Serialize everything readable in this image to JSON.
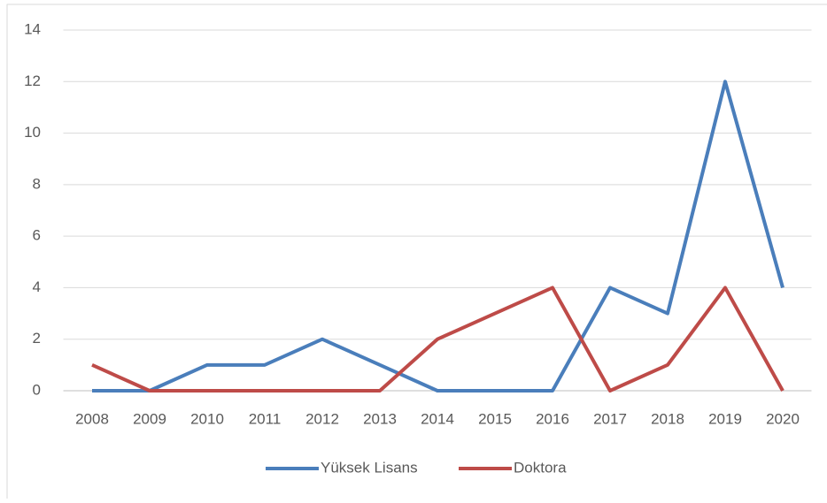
{
  "chart_data": {
    "type": "line",
    "categories": [
      "2008",
      "2009",
      "2010",
      "2011",
      "2012",
      "2013",
      "2014",
      "2015",
      "2016",
      "2017",
      "2018",
      "2019",
      "2020"
    ],
    "series": [
      {
        "name": "Yüksek Lisans",
        "color": "#4a7ebb",
        "values": [
          0,
          0,
          1,
          1,
          2,
          1,
          0,
          0,
          0,
          4,
          3,
          12,
          4
        ]
      },
      {
        "name": "Doktora",
        "color": "#be4b48",
        "values": [
          1,
          0,
          0,
          0,
          0,
          0,
          2,
          3,
          4,
          0,
          1,
          4,
          0
        ]
      }
    ],
    "ylim": [
      0,
      14
    ],
    "yticks": [
      0,
      2,
      4,
      6,
      8,
      10,
      12,
      14
    ],
    "grid": true,
    "legend": "bottom"
  }
}
